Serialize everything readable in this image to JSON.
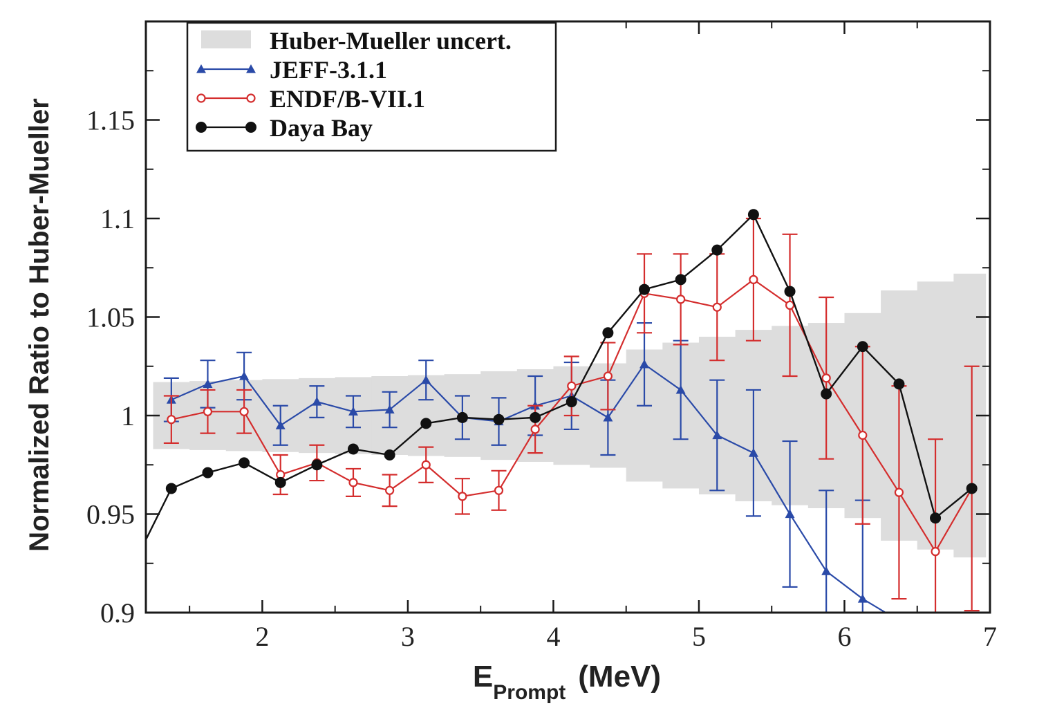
{
  "chart_data": {
    "type": "line",
    "title": "",
    "xlabel": {
      "main": "E",
      "subscript": "Prompt",
      "unit": "(MeV)"
    },
    "ylabel": "Normalized Ratio to Huber-Mueller",
    "xlim": [
      1.2,
      7.0
    ],
    "ylim": [
      0.9,
      1.2
    ],
    "x_ticks": [
      2,
      3,
      4,
      5,
      6,
      7
    ],
    "x_tick_labels": [
      "2",
      "3",
      "4",
      "5",
      "6",
      "7"
    ],
    "y_ticks": [
      0.9,
      0.95,
      1.0,
      1.05,
      1.1,
      1.15
    ],
    "y_tick_labels": [
      "0.9",
      "0.95",
      "1",
      "1.05",
      "1.1",
      "1.15"
    ],
    "legend_position": "top-left",
    "band": {
      "name": "Huber-Mueller uncert.",
      "color": "#dddddd",
      "bins": [
        {
          "x0": 1.25,
          "x1": 1.5,
          "half_width": 0.017
        },
        {
          "x0": 1.5,
          "x1": 1.75,
          "half_width": 0.0175
        },
        {
          "x0": 1.75,
          "x1": 2.0,
          "half_width": 0.018
        },
        {
          "x0": 2.0,
          "x1": 2.25,
          "half_width": 0.0185
        },
        {
          "x0": 2.25,
          "x1": 2.5,
          "half_width": 0.019
        },
        {
          "x0": 2.5,
          "x1": 2.75,
          "half_width": 0.0195
        },
        {
          "x0": 2.75,
          "x1": 3.0,
          "half_width": 0.02
        },
        {
          "x0": 3.0,
          "x1": 3.25,
          "half_width": 0.0205
        },
        {
          "x0": 3.25,
          "x1": 3.5,
          "half_width": 0.021
        },
        {
          "x0": 3.5,
          "x1": 3.75,
          "half_width": 0.0225
        },
        {
          "x0": 3.75,
          "x1": 4.0,
          "half_width": 0.0235
        },
        {
          "x0": 4.0,
          "x1": 4.25,
          "half_width": 0.025
        },
        {
          "x0": 4.25,
          "x1": 4.5,
          "half_width": 0.0265
        },
        {
          "x0": 4.5,
          "x1": 4.75,
          "half_width": 0.0335
        },
        {
          "x0": 4.75,
          "x1": 5.0,
          "half_width": 0.037
        },
        {
          "x0": 5.0,
          "x1": 5.25,
          "half_width": 0.04
        },
        {
          "x0": 5.25,
          "x1": 5.5,
          "half_width": 0.0435
        },
        {
          "x0": 5.5,
          "x1": 5.75,
          "half_width": 0.0455
        },
        {
          "x0": 5.75,
          "x1": 6.0,
          "half_width": 0.047
        },
        {
          "x0": 6.0,
          "x1": 6.25,
          "half_width": 0.052
        },
        {
          "x0": 6.25,
          "x1": 6.5,
          "half_width": 0.0635
        },
        {
          "x0": 6.5,
          "x1": 6.75,
          "half_width": 0.068
        },
        {
          "x0": 6.75,
          "x1": 6.97,
          "half_width": 0.072
        }
      ]
    },
    "series": [
      {
        "name": "JEFF-3.1.1",
        "color": "#2a4aa8",
        "marker": "triangle",
        "x": [
          1.375,
          1.625,
          1.875,
          2.125,
          2.375,
          2.625,
          2.875,
          3.125,
          3.375,
          3.625,
          3.875,
          4.125,
          4.375,
          4.625,
          4.875,
          5.125,
          5.375,
          5.625,
          5.875,
          6.125,
          6.35
        ],
        "y": [
          1.008,
          1.016,
          1.02,
          0.995,
          1.007,
          1.002,
          1.003,
          1.018,
          0.999,
          0.997,
          1.005,
          1.01,
          0.999,
          1.026,
          1.013,
          0.99,
          0.981,
          0.95,
          0.921,
          0.907,
          0.897
        ],
        "err": [
          0.011,
          0.012,
          0.012,
          0.01,
          0.008,
          0.008,
          0.009,
          0.01,
          0.011,
          0.012,
          0.015,
          0.017,
          0.019,
          0.021,
          0.025,
          0.028,
          0.032,
          0.037,
          0.041,
          0.05,
          0
        ],
        "markers_shown": 20
      },
      {
        "name": "ENDF/B-VII.1",
        "color": "#d42d2d",
        "marker": "open-circle",
        "x": [
          1.375,
          1.625,
          1.875,
          2.125,
          2.375,
          2.625,
          2.875,
          3.125,
          3.375,
          3.625,
          3.875,
          4.125,
          4.375,
          4.625,
          4.875,
          5.125,
          5.375,
          5.625,
          5.875,
          6.125,
          6.375,
          6.625,
          6.875
        ],
        "y": [
          0.998,
          1.002,
          1.002,
          0.97,
          0.976,
          0.966,
          0.962,
          0.975,
          0.959,
          0.962,
          0.993,
          1.015,
          1.02,
          1.062,
          1.059,
          1.055,
          1.069,
          1.056,
          1.019,
          0.99,
          0.961,
          0.931,
          0.963
        ],
        "err": [
          0.012,
          0.011,
          0.011,
          0.01,
          0.009,
          0.007,
          0.008,
          0.009,
          0.009,
          0.01,
          0.012,
          0.015,
          0.017,
          0.02,
          0.023,
          0.027,
          0.031,
          0.036,
          0.041,
          0.045,
          0.054,
          0.057,
          0.062
        ]
      },
      {
        "name": "Daya Bay",
        "color": "#111111",
        "marker": "filled-circle",
        "x": [
          1.2,
          1.375,
          1.625,
          1.875,
          2.125,
          2.375,
          2.625,
          2.875,
          3.125,
          3.375,
          3.625,
          3.875,
          4.125,
          4.375,
          4.625,
          4.875,
          5.125,
          5.375,
          5.625,
          5.875,
          6.125,
          6.375,
          6.625,
          6.875
        ],
        "y": [
          0.937,
          0.963,
          0.971,
          0.976,
          0.966,
          0.975,
          0.983,
          0.98,
          0.996,
          0.999,
          0.998,
          0.999,
          1.007,
          1.042,
          1.064,
          1.069,
          1.084,
          1.102,
          1.063,
          1.011,
          1.035,
          1.016,
          0.948,
          0.963
        ],
        "markers_from_index": 1
      }
    ]
  }
}
